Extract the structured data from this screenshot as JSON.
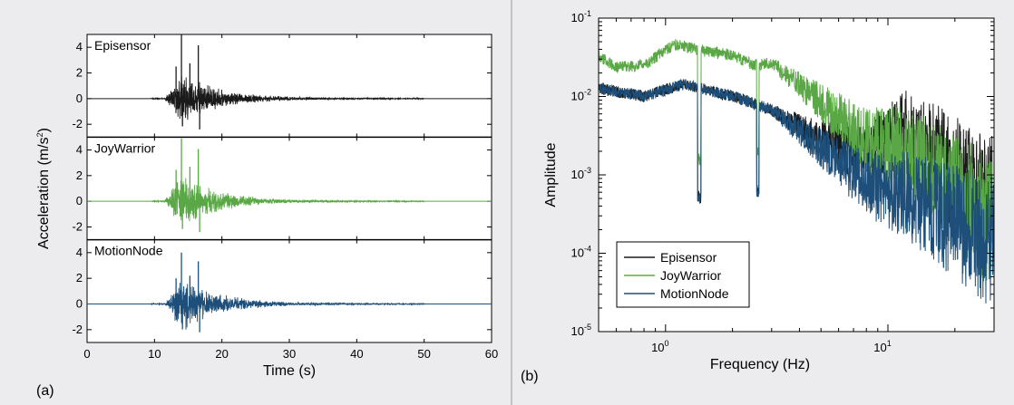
{
  "figure": {
    "panel_a_label": "(a)",
    "panel_b_label": "(b)"
  },
  "colors": {
    "Episensor": "#1a1a1a",
    "JoyWarrior": "#5aa845",
    "MotionNode": "#1d4f7a",
    "background": "#ececee"
  },
  "chart_data": [
    {
      "type": "line",
      "panel": "a",
      "title": "",
      "xlabel": "Time (s)",
      "ylabel_main": "Acceleration (m/s",
      "ylabel_sup": "2",
      "ylabel_tail": ")",
      "xlim": [
        0,
        60
      ],
      "ylim": [
        -3,
        5
      ],
      "x_ticks": [
        0,
        10,
        20,
        30,
        40,
        50,
        60
      ],
      "y_ticks": [
        -2,
        0,
        2,
        4
      ],
      "grid": false,
      "record": {
        "start": 9.5,
        "end": 50,
        "first_peak_time": 14.0,
        "second_peak_time": 16.5
      },
      "panels": [
        {
          "name": "Episensor",
          "label": "Episensor",
          "peak": 5.0,
          "min": -2.4
        },
        {
          "name": "JoyWarrior",
          "label": "JoyWarrior",
          "peak": 4.9,
          "min": -2.4
        },
        {
          "name": "MotionNode",
          "label": "MotionNode",
          "peak": 4.0,
          "min": -2.2
        }
      ]
    },
    {
      "type": "line",
      "panel": "b",
      "title": "",
      "xlabel": "Frequency (Hz)",
      "ylabel": "Amplitude",
      "xscale": "log",
      "yscale": "log",
      "xlim": [
        0.5,
        30
      ],
      "ylim": [
        1e-05,
        0.1
      ],
      "x_ticks": [
        {
          "value": 1,
          "base": "10",
          "exp": "0"
        },
        {
          "value": 10,
          "base": "10",
          "exp": "1"
        }
      ],
      "y_ticks": [
        {
          "value": 1e-05,
          "base": "10",
          "exp": "-5"
        },
        {
          "value": 0.0001,
          "base": "10",
          "exp": "-4"
        },
        {
          "value": 0.001,
          "base": "10",
          "exp": "-3"
        },
        {
          "value": 0.01,
          "base": "10",
          "exp": "-2"
        },
        {
          "value": 0.1,
          "base": "10",
          "exp": "-1"
        }
      ],
      "legend_position": "bottom-left",
      "grid": false,
      "series": [
        {
          "name": "Episensor",
          "envelope": [
            [
              0.5,
              0.015
            ],
            [
              0.8,
              0.012
            ],
            [
              1.2,
              0.017
            ],
            [
              2,
              0.012
            ],
            [
              3,
              0.008
            ],
            [
              5,
              0.005
            ],
            [
              8,
              0.005
            ],
            [
              12,
              0.012
            ],
            [
              18,
              0.007
            ],
            [
              25,
              0.004
            ],
            [
              30,
              0.0035
            ]
          ]
        },
        {
          "name": "JoyWarrior",
          "envelope": [
            [
              0.5,
              0.04
            ],
            [
              0.6,
              0.028
            ],
            [
              0.8,
              0.03
            ],
            [
              1.1,
              0.055
            ],
            [
              1.5,
              0.045
            ],
            [
              2,
              0.04
            ],
            [
              2.5,
              0.03
            ],
            [
              3,
              0.032
            ],
            [
              3.5,
              0.025
            ],
            [
              5,
              0.015
            ],
            [
              8,
              0.007
            ],
            [
              12,
              0.008
            ],
            [
              18,
              0.004
            ],
            [
              25,
              0.0025
            ],
            [
              30,
              0.0015
            ]
          ]
        },
        {
          "name": "MotionNode",
          "envelope": [
            [
              0.5,
              0.015
            ],
            [
              0.8,
              0.012
            ],
            [
              1.2,
              0.017
            ],
            [
              2,
              0.012
            ],
            [
              3,
              0.008
            ],
            [
              5,
              0.004
            ],
            [
              8,
              0.002
            ],
            [
              12,
              0.002
            ],
            [
              18,
              0.0015
            ],
            [
              25,
              0.0012
            ],
            [
              30,
              0.001
            ]
          ]
        }
      ]
    }
  ]
}
